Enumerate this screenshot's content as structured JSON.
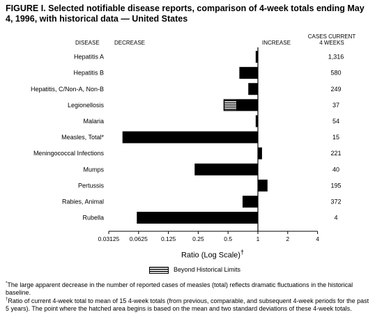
{
  "title": "FIGURE I. Selected notifiable disease reports, comparison of 4-week totals ending May 4, 1996, with historical data — United States",
  "headers": {
    "disease": "DISEASE",
    "decrease": "DECREASE",
    "increase": "INCREASE",
    "cases_line1": "CASES CURRENT",
    "cases_line2": "4 WEEKS"
  },
  "legend": {
    "label": "Beyond Historical Limits",
    "icon": "hatched-bar-swatch"
  },
  "footnotes": [
    {
      "mark": "*",
      "text": "The large apparent decrease in the number of reported cases of measles (total) reflects dramatic fluctuations in the historical baseline."
    },
    {
      "mark": "†",
      "text": "Ratio of current 4-week total to mean of 15 4-week totals (from previous, comparable, and subsequent 4-week periods for the past 5 years). The point where the hatched area begins is based on the mean and two standard deviations of these 4-week totals."
    }
  ],
  "chart_data": {
    "type": "bar",
    "orientation": "horizontal",
    "xscale": "log2",
    "baseline": 1,
    "xlabel": "Ratio (Log Scale)",
    "xlabel_mark": "†",
    "xlim": [
      0.03125,
      4
    ],
    "xticks": [
      "0.03125",
      "0.0625",
      "0.125",
      "0.25",
      "0.5",
      "1",
      "2",
      "4"
    ],
    "xtick_values": [
      0.03125,
      0.0625,
      0.125,
      0.25,
      0.5,
      1,
      2,
      4
    ],
    "categories": [
      "Hepatitis A",
      "Hepatitis B",
      "Hepatitis, C/Non-A, Non-B",
      "Legionellosis",
      "Malaria",
      "Measles, Total*",
      "Meningococcal Infections",
      "Mumps",
      "Pertussis",
      "Rabies, Animal",
      "Rubella"
    ],
    "values": [
      0.95,
      0.65,
      0.8,
      0.45,
      0.95,
      0.043,
      1.1,
      0.23,
      1.25,
      0.7,
      0.06
    ],
    "beyond_historical_limits": [
      null,
      null,
      null,
      0.6,
      null,
      null,
      null,
      null,
      null,
      null,
      null
    ],
    "cases": [
      "1,316",
      "580",
      "249",
      "37",
      "54",
      "15",
      "221",
      "40",
      "195",
      "372",
      "4"
    ]
  }
}
